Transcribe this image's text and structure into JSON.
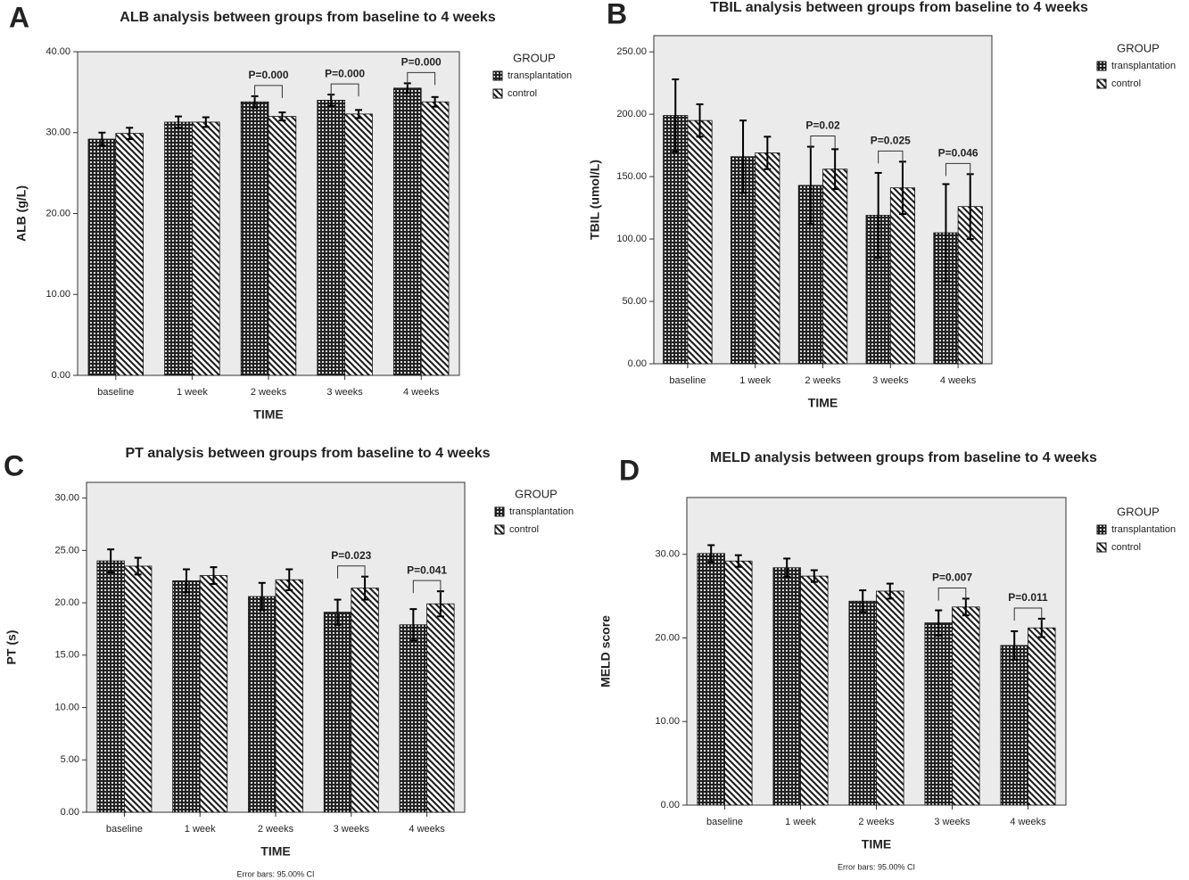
{
  "chart_data": [
    {
      "type": "bar",
      "panel_label": "A",
      "title": "ALB analysis between groups from baseline to 4 weeks",
      "x_label": "TIME",
      "y_label": "ALB (g/L)",
      "legend_title": "GROUP",
      "categories": [
        "baseline",
        "1 week",
        "2 weeks",
        "3 weeks",
        "4 weeks"
      ],
      "series": [
        {
          "name": "transplantation",
          "color": "#222222",
          "pattern": "grid",
          "values": [
            29.2,
            31.3,
            33.8,
            34.0,
            35.5
          ],
          "errors": [
            0.8,
            0.7,
            0.7,
            0.7,
            0.6
          ]
        },
        {
          "name": "control",
          "color": "#222222",
          "pattern": "diagonal",
          "values": [
            29.9,
            31.3,
            32.0,
            32.3,
            33.8
          ],
          "errors": [
            0.7,
            0.6,
            0.5,
            0.5,
            0.6
          ]
        }
      ],
      "p_values": [
        null,
        null,
        "P=0.000",
        "P=0.000",
        "P=0.000"
      ],
      "ylim": [
        0,
        40
      ],
      "yticks": [
        {
          "value": 0,
          "label": "0.00"
        },
        {
          "value": 10,
          "label": "10.00"
        },
        {
          "value": 20,
          "label": "20.00"
        },
        {
          "value": 30,
          "label": "30.00"
        },
        {
          "value": 40,
          "label": "40.00"
        }
      ]
    },
    {
      "type": "bar",
      "panel_label": "B",
      "title": "TBIL analysis between groups from baseline to 4 weeks",
      "x_label": "TIME",
      "y_label": "TBIL (umol/L)",
      "legend_title": "GROUP",
      "categories": [
        "baseline",
        "1 week",
        "2 weeks",
        "3 weeks",
        "4 weeks"
      ],
      "series": [
        {
          "name": "transplantation",
          "color": "#222222",
          "pattern": "grid",
          "values": [
            199,
            166,
            143,
            119,
            105
          ],
          "errors": [
            29,
            29,
            31,
            34,
            39
          ]
        },
        {
          "name": "control",
          "color": "#222222",
          "pattern": "diagonal",
          "values": [
            195,
            169,
            156,
            141,
            126
          ],
          "errors": [
            13,
            13,
            16,
            21,
            26
          ]
        }
      ],
      "p_values": [
        null,
        null,
        "P=0.02",
        "P=0.025",
        "P=0.046"
      ],
      "ylim": [
        0,
        263
      ],
      "yticks": [
        {
          "value": 0,
          "label": "0.00"
        },
        {
          "value": 50,
          "label": "50.00"
        },
        {
          "value": 100,
          "label": "100.00"
        },
        {
          "value": 150,
          "label": "150.00"
        },
        {
          "value": 200,
          "label": "200.00"
        },
        {
          "value": 250,
          "label": "250.00"
        }
      ]
    },
    {
      "type": "bar",
      "panel_label": "C",
      "title": "PT analysis between groups from baseline to 4 weeks",
      "x_label": "TIME",
      "y_label": "PT (s)",
      "legend_title": "GROUP",
      "note": "Error bars: 95.00% CI",
      "categories": [
        "baseline",
        "1 week",
        "2 weeks",
        "3 weeks",
        "4 weeks"
      ],
      "series": [
        {
          "name": "transplantation",
          "color": "#222222",
          "pattern": "grid",
          "values": [
            24.0,
            22.1,
            20.6,
            19.1,
            17.9
          ],
          "errors": [
            1.1,
            1.1,
            1.3,
            1.2,
            1.5
          ]
        },
        {
          "name": "control",
          "color": "#222222",
          "pattern": "diagonal",
          "values": [
            23.5,
            22.6,
            22.2,
            21.4,
            19.9
          ],
          "errors": [
            0.8,
            0.8,
            1.0,
            1.1,
            1.2
          ]
        }
      ],
      "p_values": [
        null,
        null,
        null,
        "P=0.023",
        "P=0.041"
      ],
      "ylim": [
        0,
        31.5
      ],
      "yticks": [
        {
          "value": 0,
          "label": "0.00"
        },
        {
          "value": 5,
          "label": "5.00"
        },
        {
          "value": 10,
          "label": "10.00"
        },
        {
          "value": 15,
          "label": "15.00"
        },
        {
          "value": 20,
          "label": "20.00"
        },
        {
          "value": 25,
          "label": "25.00"
        },
        {
          "value": 30,
          "label": "30.00"
        }
      ]
    },
    {
      "type": "bar",
      "panel_label": "D",
      "title": "MELD analysis between groups from baseline to 4 weeks",
      "x_label": "TIME",
      "y_label": "MELD score",
      "legend_title": "GROUP",
      "note": "Error bars: 95.00% CI",
      "categories": [
        "baseline",
        "1 week",
        "2 weeks",
        "3 weeks",
        "4 weeks"
      ],
      "series": [
        {
          "name": "transplantation",
          "color": "#222222",
          "pattern": "grid",
          "values": [
            30.1,
            28.4,
            24.4,
            21.8,
            19.1
          ],
          "errors": [
            1.0,
            1.1,
            1.3,
            1.5,
            1.7
          ]
        },
        {
          "name": "control",
          "color": "#222222",
          "pattern": "diagonal",
          "values": [
            29.2,
            27.4,
            25.6,
            23.7,
            21.2
          ],
          "errors": [
            0.7,
            0.7,
            0.9,
            1.0,
            1.1
          ]
        }
      ],
      "p_values": [
        null,
        null,
        null,
        "P=0.007",
        "P=0.011"
      ],
      "ylim": [
        0,
        36.8
      ],
      "yticks": [
        {
          "value": 0,
          "label": "0.00"
        },
        {
          "value": 10,
          "label": "10.00"
        },
        {
          "value": 20,
          "label": "20.00"
        },
        {
          "value": 30,
          "label": "30.00"
        }
      ]
    }
  ]
}
